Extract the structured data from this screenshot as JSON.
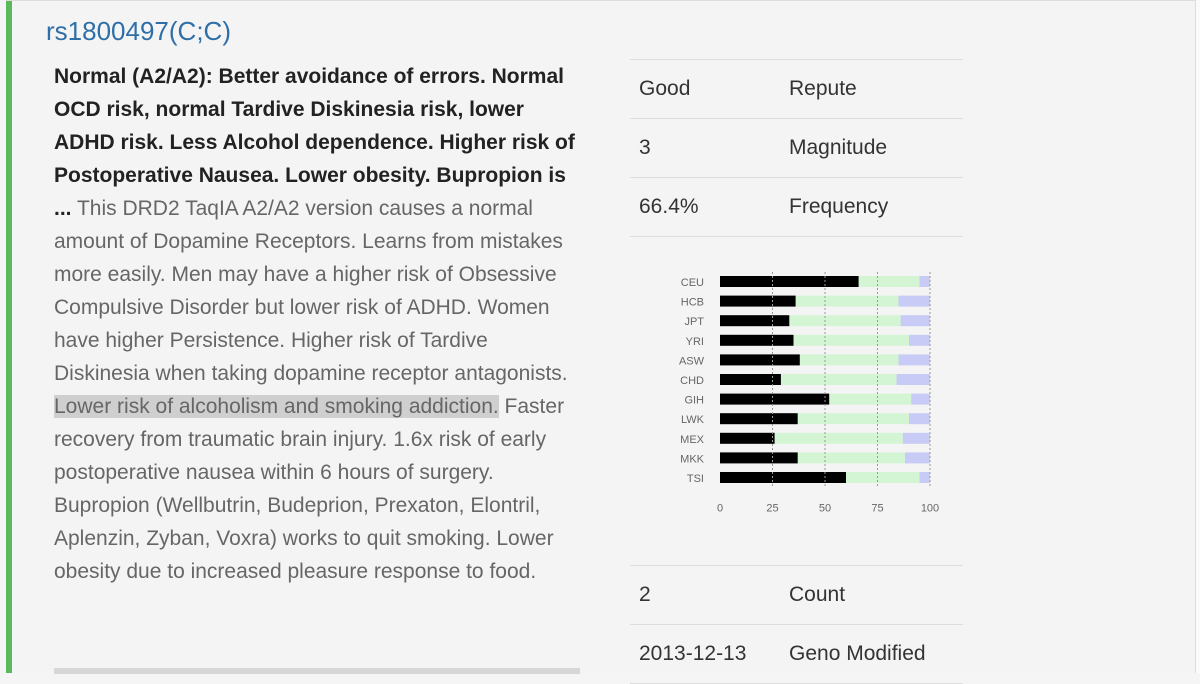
{
  "title": "rs1800497(C;C)",
  "description": {
    "summary": "Normal (A2/A2): Better avoidance of errors. Normal OCD risk, normal Tardive Diskinesia risk, lower ADHD risk. Less Alcohol dependence. Higher risk of Postoperative Nausea. Lower obesity. Bupropion is ...",
    "text_before": " This DRD2 TaqIA A2/A2 version causes a normal amount of Dopamine Receptors. Learns from mistakes more easily. Men may have a higher risk of Obsessive Compulsive Disorder but lower risk of ADHD. Women have higher Persistence. Higher risk of Tardive Diskinesia when taking dopamine receptor antagonists. ",
    "highlight": "Lower risk of alcoholism and smoking addiction.",
    "text_after": " Faster recovery from traumatic brain injury. 1.6x risk of early postoperative nausea within 6 hours of surgery. Bupropion (Wellbutrin, Budeprion, Prexaton, Elontril, Aplenzin, Zyban, Voxra) works to quit smoking. Lower obesity due to increased pleasure response to food."
  },
  "info_top": [
    {
      "value": "Good",
      "label": "Repute"
    },
    {
      "value": "3",
      "label": "Magnitude"
    },
    {
      "value": "66.4%",
      "label": "Frequency"
    }
  ],
  "info_bottom": [
    {
      "value": "2",
      "label": "Count"
    },
    {
      "value": "2013-12-13",
      "label": "Geno Modified"
    }
  ],
  "colors": {
    "accent_border": "#5cb85c",
    "title": "#2f6fa7",
    "bar_this_genotype": "#000000",
    "bar_heterozygous": "#d4f5d4",
    "bar_other_homozygous": "#c8cbf5"
  },
  "chart_data": {
    "type": "bar",
    "orientation": "horizontal",
    "stacked": true,
    "categories": [
      "CEU",
      "HCB",
      "JPT",
      "YRI",
      "ASW",
      "CHD",
      "GIH",
      "LWK",
      "MEX",
      "MKK",
      "TSI"
    ],
    "series": [
      {
        "values": [
          66,
          36,
          33,
          35,
          38,
          29,
          52,
          37,
          26,
          37,
          60
        ]
      },
      {
        "values": [
          29,
          49,
          53,
          55,
          47,
          55,
          39,
          53,
          61,
          51,
          35
        ]
      },
      {
        "values": [
          5,
          15,
          14,
          10,
          15,
          16,
          9,
          10,
          13,
          12,
          5
        ]
      }
    ],
    "x_ticks": [
      "0",
      "25",
      "50",
      "75",
      "100"
    ],
    "xlim": [
      0,
      100
    ],
    "grid": "dashed vertical at 25, 50, 75, 100"
  }
}
